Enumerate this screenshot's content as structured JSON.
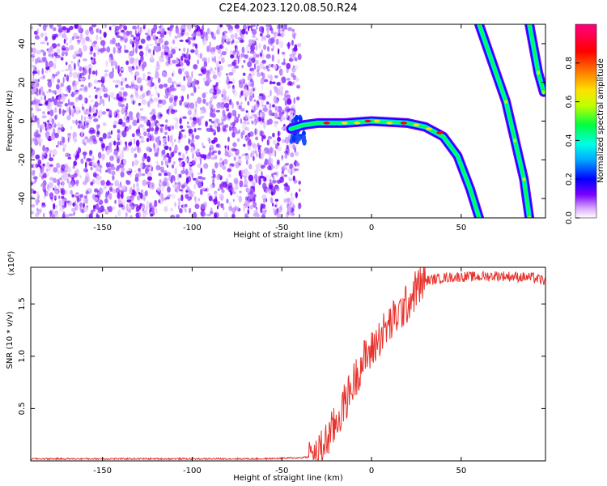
{
  "title": "C2E4.2023.120.08.50.R24",
  "chart_data": [
    {
      "type": "heatmap",
      "title": "C2E4.2023.120.08.50.R24",
      "xlabel": "Height of straight line (km)",
      "ylabel": "Frequency (Hz)",
      "xlim": [
        -190,
        97
      ],
      "ylim": [
        -50,
        50
      ],
      "xticks": [
        -150,
        -100,
        -50,
        0,
        50
      ],
      "yticks": [
        -40,
        -20,
        0,
        20,
        40
      ],
      "colorbar": {
        "label": "Normalized spectral amplitude",
        "range": [
          0,
          1
        ],
        "ticks": [
          0.0,
          0.2,
          0.4,
          0.6,
          0.8
        ],
        "colormap": [
          "#ffffff",
          "#d8a8ff",
          "#7a00ff",
          "#0000ff",
          "#00a8ff",
          "#00ffe8",
          "#00ff40",
          "#c0ff00",
          "#ffe000",
          "#ff8000",
          "#ff0000",
          "#ff0080"
        ]
      },
      "features": [
        {
          "name": "noise field",
          "x_range": [
            -190,
            -40
          ],
          "f_range": [
            -50,
            50
          ],
          "amplitude": [
            0.0,
            0.2
          ]
        },
        {
          "name": "main trace",
          "points": [
            [
              -45,
              -4
            ],
            [
              -38,
              -2
            ],
            [
              -30,
              -1
            ],
            [
              -15,
              -1
            ],
            [
              0,
              0
            ],
            [
              20,
              -1
            ],
            [
              30,
              -3
            ],
            [
              40,
              -8
            ],
            [
              48,
              -18
            ],
            [
              55,
              -35
            ],
            [
              60,
              -50
            ]
          ]
        },
        {
          "name": "trace 2",
          "points": [
            [
              60,
              50
            ],
            [
              75,
              10
            ],
            [
              80,
              -10
            ],
            [
              85,
              -30
            ],
            [
              88,
              -50
            ]
          ]
        },
        {
          "name": "trace 3",
          "points": [
            [
              88,
              50
            ],
            [
              93,
              25
            ],
            [
              96,
              15
            ]
          ]
        }
      ]
    },
    {
      "type": "line",
      "xlabel": "Height of straight line (km)",
      "ylabel": "SNR (10 * v/v)",
      "yscale_label": "(x10⁴)",
      "xlim": [
        -190,
        97
      ],
      "ylim": [
        0,
        1.85
      ],
      "xticks": [
        -150,
        -100,
        -50,
        0,
        50
      ],
      "yticks": [
        0.5,
        1.0,
        1.5
      ],
      "ytick_labels": [
        "0.5",
        "1.0",
        "1.5"
      ],
      "color": "#e8322c",
      "series": [
        {
          "x": [
            -190,
            -150,
            -100,
            -60,
            -40,
            -30,
            -25,
            -20,
            -15,
            -10,
            -5,
            0,
            5,
            10,
            15,
            20,
            25,
            30,
            40,
            50,
            60,
            70,
            80,
            90,
            97
          ],
          "values": [
            0.02,
            0.02,
            0.02,
            0.02,
            0.03,
            0.05,
            0.2,
            0.35,
            0.55,
            0.75,
            0.95,
            1.05,
            1.2,
            1.3,
            1.4,
            1.5,
            1.65,
            1.72,
            1.75,
            1.76,
            1.76,
            1.77,
            1.76,
            1.75,
            1.72
          ]
        }
      ]
    }
  ]
}
